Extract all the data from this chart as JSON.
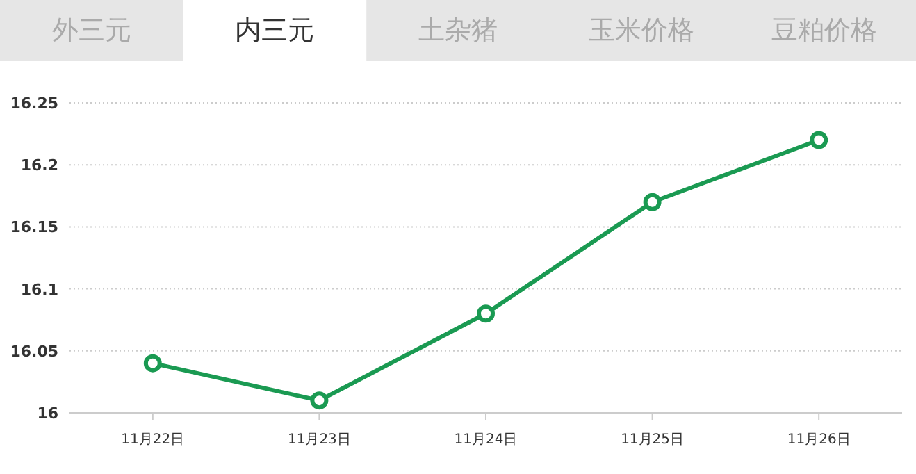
{
  "chart_data": {
    "type": "line",
    "annotations": [
      "外三元",
      "内三元",
      "土杂猪",
      "玉米价格",
      "豆粕价格"
    ],
    "categories": [
      "11月22日",
      "11月23日",
      "11月24日",
      "11月25日",
      "11月26日"
    ],
    "series": [
      {
        "color": "#1a9a52",
        "values": [
          16.04,
          16.01,
          16.08,
          16.17,
          16.22
        ]
      }
    ],
    "ylim": [
      16,
      16.25
    ],
    "yticks": [
      16,
      16.05,
      16.1,
      16.15,
      16.2,
      16.25
    ],
    "grid": "y",
    "marker": "circle",
    "line_style": "solid"
  }
}
